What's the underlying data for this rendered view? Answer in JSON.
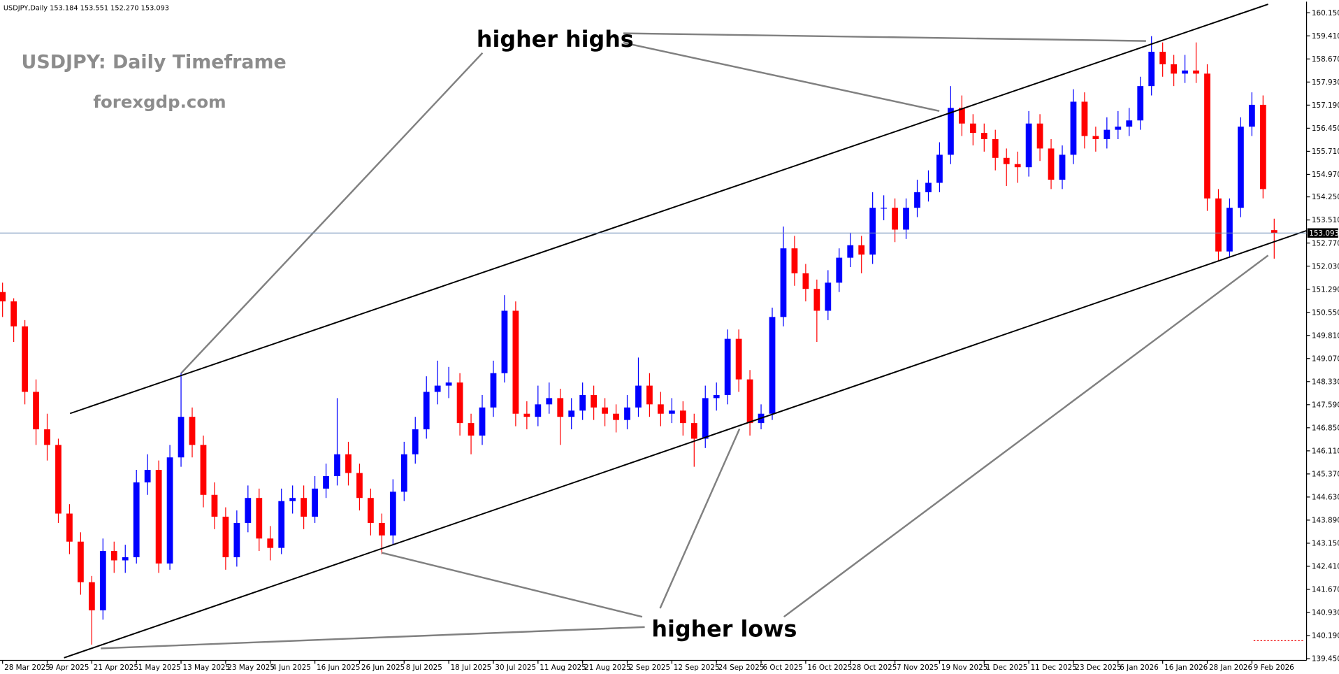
{
  "header": "USDJPY,Daily  153.184 153.551 152.270 153.093",
  "chart_data": {
    "type": "candlestick",
    "title": "USDJPY: Daily Timeframe",
    "subtitle": "forexgdp.com",
    "annotations": [
      "higher highs",
      "higher lows"
    ],
    "up_color": "#0000ff",
    "down_color": "#ff0000",
    "xlim": [
      -0.46,
      233.8
    ],
    "ylim": [
      139.395,
      160.506
    ],
    "current_price": {
      "value": 153.093,
      "label": "153.093"
    },
    "xticks": [
      {
        "value": 0,
        "label": "28 Mar 2025"
      },
      {
        "value": 8,
        "label": "9 Apr 2025"
      },
      {
        "value": 16,
        "label": "21 Apr 2025"
      },
      {
        "value": 24,
        "label": "1 May 2025"
      },
      {
        "value": 32,
        "label": "13 May 2025"
      },
      {
        "value": 40,
        "label": "23 May 2025"
      },
      {
        "value": 48,
        "label": "4 Jun 2025"
      },
      {
        "value": 56,
        "label": "16 Jun 2025"
      },
      {
        "value": 64,
        "label": "26 Jun 2025"
      },
      {
        "value": 72,
        "label": "8 Jul 2025"
      },
      {
        "value": 80,
        "label": "18 Jul 2025"
      },
      {
        "value": 88,
        "label": "30 Jul 2025"
      },
      {
        "value": 96,
        "label": "11 Aug 2025"
      },
      {
        "value": 104,
        "label": "21 Aug 2025"
      },
      {
        "value": 112,
        "label": "2 Sep 2025"
      },
      {
        "value": 120,
        "label": "12 Sep 2025"
      },
      {
        "value": 128,
        "label": "24 Sep 2025"
      },
      {
        "value": 136,
        "label": "6 Oct 2025"
      },
      {
        "value": 144,
        "label": "16 Oct 2025"
      },
      {
        "value": 152,
        "label": "28 Oct 2025"
      },
      {
        "value": 160,
        "label": "7 Nov 2025"
      },
      {
        "value": 168,
        "label": "19 Nov 2025"
      },
      {
        "value": 176,
        "label": "1 Dec 2025"
      },
      {
        "value": 184,
        "label": "11 Dec 2025"
      },
      {
        "value": 192,
        "label": "23 Dec 2025"
      },
      {
        "value": 200,
        "label": "6 Jan 2026"
      },
      {
        "value": 208,
        "label": "16 Jan 2026"
      },
      {
        "value": 216,
        "label": "28 Jan 2026"
      },
      {
        "value": 224,
        "label": "9 Feb 2026"
      }
    ],
    "yticks": [
      {
        "value": 160.15,
        "label": "160.150"
      },
      {
        "value": 159.41,
        "label": "159.410"
      },
      {
        "value": 158.67,
        "label": "158.670"
      },
      {
        "value": 157.93,
        "label": "157.930"
      },
      {
        "value": 157.19,
        "label": "157.190"
      },
      {
        "value": 156.45,
        "label": "156.450"
      },
      {
        "value": 155.71,
        "label": "155.710"
      },
      {
        "value": 154.97,
        "label": "154.970"
      },
      {
        "value": 154.25,
        "label": "154.250"
      },
      {
        "value": 153.51,
        "label": "153.510"
      },
      {
        "value": 152.77,
        "label": "152.770"
      },
      {
        "value": 152.03,
        "label": "152.030"
      },
      {
        "value": 151.29,
        "label": "151.290"
      },
      {
        "value": 150.55,
        "label": "150.550"
      },
      {
        "value": 149.81,
        "label": "149.810"
      },
      {
        "value": 149.07,
        "label": "149.070"
      },
      {
        "value": 148.33,
        "label": "148.330"
      },
      {
        "value": 147.59,
        "label": "147.590"
      },
      {
        "value": 146.85,
        "label": "146.850"
      },
      {
        "value": 146.11,
        "label": "146.110"
      },
      {
        "value": 145.37,
        "label": "145.370"
      },
      {
        "value": 144.63,
        "label": "144.630"
      },
      {
        "value": 143.89,
        "label": "143.890"
      },
      {
        "value": 143.15,
        "label": "143.150"
      },
      {
        "value": 142.41,
        "label": "142.410"
      },
      {
        "value": 141.67,
        "label": "141.670"
      },
      {
        "value": 140.93,
        "label": "140.930"
      },
      {
        "value": 140.19,
        "label": "140.190"
      },
      {
        "value": 139.45,
        "label": "139.450"
      }
    ],
    "x": [
      0,
      2,
      4,
      6,
      8,
      10,
      12,
      14,
      16,
      18,
      20,
      22,
      24,
      26,
      28,
      30,
      32,
      34,
      36,
      38,
      40,
      42,
      44,
      46,
      48,
      50,
      52,
      54,
      56,
      58,
      60,
      62,
      64,
      66,
      68,
      70,
      72,
      74,
      76,
      78,
      80,
      82,
      84,
      86,
      88,
      90,
      92,
      94,
      96,
      98,
      100,
      102,
      104,
      106,
      108,
      110,
      112,
      114,
      116,
      118,
      120,
      122,
      124,
      126,
      128,
      130,
      132,
      134,
      136,
      138,
      140,
      142,
      144,
      146,
      148,
      150,
      152,
      154,
      156,
      158,
      160,
      162,
      164,
      166,
      168,
      170,
      172,
      174,
      176,
      178,
      180,
      182,
      184,
      186,
      188,
      190,
      192,
      194,
      196,
      198,
      200,
      202,
      204,
      206,
      208,
      210,
      212,
      214,
      216,
      218,
      220,
      222,
      224,
      226,
      228
    ],
    "ohlc": [
      [
        151.2,
        151.5,
        150.4,
        150.9
      ],
      [
        150.9,
        151.0,
        149.6,
        150.1
      ],
      [
        150.1,
        150.3,
        147.6,
        148.0
      ],
      [
        148.0,
        148.4,
        146.3,
        146.8
      ],
      [
        146.8,
        147.3,
        145.8,
        146.3
      ],
      [
        146.3,
        146.5,
        143.8,
        144.1
      ],
      [
        144.1,
        144.4,
        142.8,
        143.2
      ],
      [
        143.2,
        143.5,
        141.5,
        141.9
      ],
      [
        141.9,
        142.1,
        139.9,
        141.0
      ],
      [
        141.0,
        143.3,
        140.7,
        142.9
      ],
      [
        142.9,
        143.2,
        142.2,
        142.6
      ],
      [
        142.6,
        143.1,
        142.2,
        142.7
      ],
      [
        142.7,
        145.5,
        142.5,
        145.1
      ],
      [
        145.1,
        146.0,
        144.7,
        145.5
      ],
      [
        145.5,
        145.8,
        142.2,
        142.5
      ],
      [
        142.5,
        146.3,
        142.3,
        145.9
      ],
      [
        145.9,
        148.6,
        145.6,
        147.2
      ],
      [
        147.2,
        147.5,
        145.9,
        146.3
      ],
      [
        146.3,
        146.6,
        144.3,
        144.7
      ],
      [
        144.7,
        145.1,
        143.6,
        144.0
      ],
      [
        144.0,
        144.3,
        142.3,
        142.7
      ],
      [
        142.7,
        144.2,
        142.4,
        143.8
      ],
      [
        143.8,
        145.0,
        143.5,
        144.6
      ],
      [
        144.6,
        144.9,
        142.9,
        143.3
      ],
      [
        143.3,
        143.7,
        142.6,
        143.0
      ],
      [
        143.0,
        144.9,
        142.8,
        144.5
      ],
      [
        144.5,
        145.0,
        144.1,
        144.6
      ],
      [
        144.6,
        145.0,
        143.6,
        144.0
      ],
      [
        144.0,
        145.3,
        143.8,
        144.9
      ],
      [
        144.9,
        145.7,
        144.6,
        145.3
      ],
      [
        145.3,
        147.8,
        145.0,
        146.0
      ],
      [
        146.0,
        146.4,
        145.0,
        145.4
      ],
      [
        145.4,
        145.7,
        144.2,
        144.6
      ],
      [
        144.6,
        144.9,
        143.4,
        143.8
      ],
      [
        143.8,
        144.1,
        142.8,
        143.4
      ],
      [
        143.4,
        145.2,
        143.1,
        144.8
      ],
      [
        144.8,
        146.4,
        144.5,
        146.0
      ],
      [
        146.0,
        147.2,
        145.7,
        146.8
      ],
      [
        146.8,
        148.5,
        146.5,
        148.0
      ],
      [
        148.0,
        149.0,
        147.6,
        148.2
      ],
      [
        148.2,
        148.8,
        147.8,
        148.3
      ],
      [
        148.3,
        148.6,
        146.6,
        147.0
      ],
      [
        147.0,
        147.3,
        146.0,
        146.6
      ],
      [
        146.6,
        147.9,
        146.3,
        147.5
      ],
      [
        147.5,
        149.0,
        147.2,
        148.6
      ],
      [
        148.6,
        151.1,
        148.3,
        150.6
      ],
      [
        150.6,
        150.9,
        146.9,
        147.3
      ],
      [
        147.3,
        147.7,
        146.8,
        147.2
      ],
      [
        147.2,
        148.2,
        146.9,
        147.6
      ],
      [
        147.6,
        148.3,
        147.3,
        147.8
      ],
      [
        147.8,
        148.1,
        146.3,
        147.2
      ],
      [
        147.2,
        147.8,
        146.8,
        147.4
      ],
      [
        147.4,
        148.3,
        147.1,
        147.9
      ],
      [
        147.9,
        148.2,
        147.1,
        147.5
      ],
      [
        147.5,
        147.8,
        146.9,
        147.3
      ],
      [
        147.3,
        147.6,
        146.7,
        147.1
      ],
      [
        147.1,
        147.9,
        146.8,
        147.5
      ],
      [
        147.5,
        149.1,
        147.2,
        148.2
      ],
      [
        148.2,
        148.6,
        147.2,
        147.6
      ],
      [
        147.6,
        148.0,
        146.9,
        147.3
      ],
      [
        147.3,
        147.8,
        147.0,
        147.4
      ],
      [
        147.4,
        147.7,
        146.6,
        147.0
      ],
      [
        147.0,
        147.3,
        145.6,
        146.5
      ],
      [
        146.5,
        148.2,
        146.2,
        147.8
      ],
      [
        147.8,
        148.3,
        147.4,
        147.9
      ],
      [
        147.9,
        150.0,
        147.6,
        149.7
      ],
      [
        149.7,
        150.0,
        148.0,
        148.4
      ],
      [
        148.4,
        148.7,
        146.6,
        147.0
      ],
      [
        147.0,
        147.6,
        146.8,
        147.3
      ],
      [
        147.3,
        150.7,
        147.1,
        150.4
      ],
      [
        150.4,
        153.3,
        150.1,
        152.6
      ],
      [
        152.6,
        153.0,
        151.4,
        151.8
      ],
      [
        151.8,
        152.1,
        150.9,
        151.3
      ],
      [
        151.3,
        151.6,
        149.6,
        150.6
      ],
      [
        150.6,
        151.9,
        150.3,
        151.5
      ],
      [
        151.5,
        152.6,
        151.2,
        152.3
      ],
      [
        152.3,
        153.1,
        152.0,
        152.7
      ],
      [
        152.7,
        153.0,
        151.8,
        152.4
      ],
      [
        152.4,
        154.4,
        152.1,
        153.9
      ],
      [
        153.9,
        154.3,
        153.5,
        153.9
      ],
      [
        153.9,
        154.2,
        152.8,
        153.2
      ],
      [
        153.2,
        154.2,
        152.9,
        153.9
      ],
      [
        153.9,
        154.8,
        153.6,
        154.4
      ],
      [
        154.4,
        155.1,
        154.1,
        154.7
      ],
      [
        154.7,
        156.0,
        154.4,
        155.6
      ],
      [
        155.6,
        157.8,
        155.3,
        157.1
      ],
      [
        157.1,
        157.5,
        156.2,
        156.6
      ],
      [
        156.6,
        156.9,
        155.9,
        156.3
      ],
      [
        156.3,
        156.6,
        155.7,
        156.1
      ],
      [
        156.1,
        156.4,
        155.1,
        155.5
      ],
      [
        155.5,
        155.8,
        154.6,
        155.3
      ],
      [
        155.3,
        155.7,
        154.7,
        155.2
      ],
      [
        155.2,
        157.0,
        154.9,
        156.6
      ],
      [
        156.6,
        156.9,
        155.4,
        155.8
      ],
      [
        155.8,
        156.1,
        154.5,
        154.8
      ],
      [
        154.8,
        155.9,
        154.5,
        155.6
      ],
      [
        155.6,
        157.7,
        155.3,
        157.3
      ],
      [
        157.3,
        157.6,
        155.8,
        156.2
      ],
      [
        156.2,
        156.5,
        155.7,
        156.1
      ],
      [
        156.1,
        156.8,
        155.8,
        156.4
      ],
      [
        156.4,
        157.0,
        156.1,
        156.5
      ],
      [
        156.5,
        157.1,
        156.2,
        156.7
      ],
      [
        156.7,
        158.1,
        156.4,
        157.8
      ],
      [
        157.8,
        159.4,
        157.5,
        158.9
      ],
      [
        158.9,
        159.2,
        158.1,
        158.5
      ],
      [
        158.5,
        158.8,
        157.8,
        158.2
      ],
      [
        158.2,
        158.8,
        157.9,
        158.3
      ],
      [
        158.3,
        159.2,
        157.9,
        158.2
      ],
      [
        158.2,
        158.5,
        153.8,
        154.2
      ],
      [
        154.2,
        154.5,
        152.2,
        152.5
      ],
      [
        152.5,
        154.2,
        152.3,
        153.9
      ],
      [
        153.9,
        156.8,
        153.6,
        156.5
      ],
      [
        156.5,
        157.6,
        156.2,
        157.2
      ],
      [
        157.2,
        157.5,
        154.2,
        154.5
      ],
      [
        153.184,
        153.551,
        152.27,
        153.093
      ]
    ]
  }
}
